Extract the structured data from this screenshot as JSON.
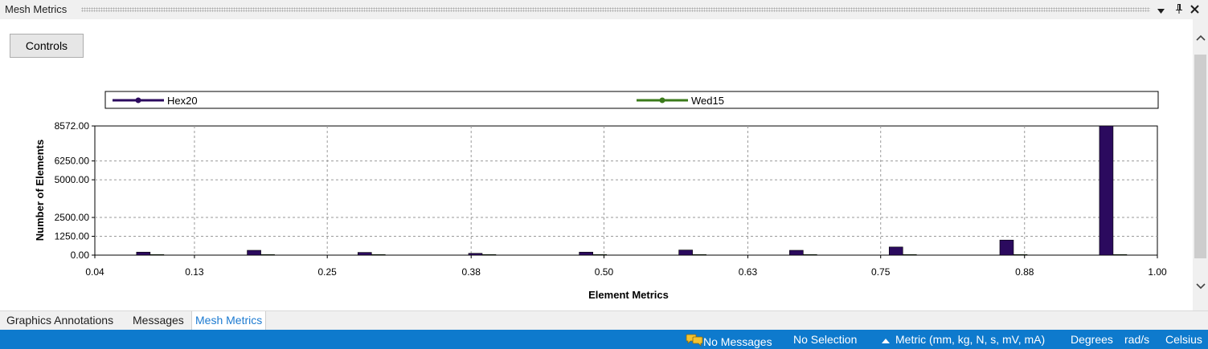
{
  "panel": {
    "title": "Mesh Metrics",
    "dropdown_icon": "triangle-down-icon",
    "pin_icon": "pin-icon",
    "close_icon": "close-icon"
  },
  "controls_label": "Controls",
  "chart_data": {
    "type": "bar",
    "xlabel": "Element Metrics",
    "ylabel": "Number of Elements",
    "xlim": [
      0.04,
      1.0
    ],
    "ylim": [
      0,
      8572
    ],
    "x_ticks": [
      "0.04",
      "0.13",
      "0.25",
      "0.38",
      "0.50",
      "0.63",
      "0.75",
      "0.88",
      "1.00"
    ],
    "y_ticks": [
      "8572.00",
      "6250.00",
      "5000.00",
      "2500.00",
      "1250.00",
      "0.00"
    ],
    "grid": true,
    "legend": "top",
    "series": [
      {
        "name": "Hex20",
        "color": "#2b0a5e",
        "x": [
          0.09,
          0.19,
          0.29,
          0.39,
          0.49,
          0.58,
          0.68,
          0.77,
          0.87,
          0.96
        ],
        "values": [
          200,
          320,
          180,
          120,
          200,
          340,
          320,
          540,
          1000,
          8572
        ]
      },
      {
        "name": "Wed15",
        "color": "#3b7a1a",
        "x": [
          0.09,
          0.19,
          0.29,
          0.39,
          0.49,
          0.58,
          0.68,
          0.77,
          0.87,
          0.96
        ],
        "values": [
          40,
          40,
          40,
          40,
          40,
          40,
          40,
          40,
          40,
          40
        ]
      }
    ]
  },
  "tabs": [
    {
      "label": "Graphics Annotations",
      "active": false
    },
    {
      "label": "Messages",
      "active": false
    },
    {
      "label": "Mesh Metrics",
      "active": true
    }
  ],
  "status": {
    "messages": "No Messages",
    "messages_icon": "messages-icon",
    "selection": "No Selection",
    "unit_icon": "triangle-up-icon",
    "units": "Metric (mm, kg, N, s, mV, mA)",
    "angle": "Degrees",
    "rotational": "rad/s",
    "temperature": "Celsius"
  }
}
